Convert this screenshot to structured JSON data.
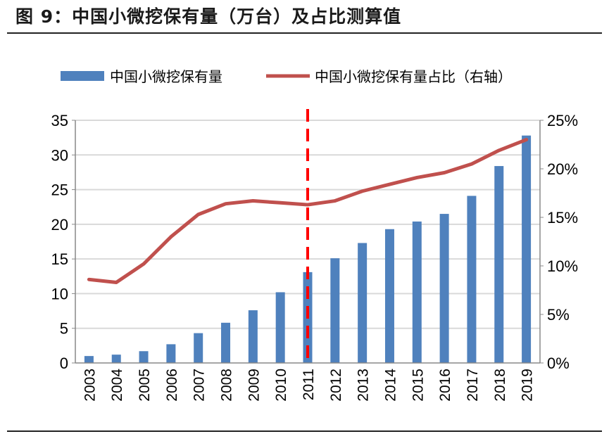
{
  "title": "图 9：中国小微挖保有量（万台）及占比测算值",
  "chart_data": {
    "type": "bar+line",
    "categories": [
      "2003",
      "2004",
      "2005",
      "2006",
      "2007",
      "2008",
      "2009",
      "2010",
      "2011",
      "2012",
      "2013",
      "2014",
      "2015",
      "2016",
      "2017",
      "2018",
      "2019"
    ],
    "series": [
      {
        "name": "中国小微挖保有量",
        "type": "bar",
        "axis": "left",
        "color": "#4F81BD",
        "values": [
          1.0,
          1.2,
          1.7,
          2.7,
          4.3,
          5.8,
          7.6,
          10.2,
          13.1,
          15.1,
          17.3,
          19.3,
          20.4,
          21.5,
          24.1,
          28.4,
          32.8
        ]
      },
      {
        "name": "中国小微挖保有量占比（右轴）",
        "type": "line",
        "axis": "right",
        "color": "#C0504D",
        "values": [
          8.6,
          8.3,
          10.2,
          13.0,
          15.3,
          16.4,
          16.7,
          16.5,
          16.3,
          16.7,
          17.7,
          18.4,
          19.1,
          19.6,
          20.5,
          21.9,
          23.0
        ]
      }
    ],
    "left_axis": {
      "ylim": [
        0,
        35
      ],
      "ticks": [
        "0",
        "5",
        "10",
        "15",
        "20",
        "25",
        "30",
        "35"
      ]
    },
    "right_axis": {
      "ylim": [
        0,
        25
      ],
      "ticks": [
        "0%",
        "5%",
        "10%",
        "15%",
        "20%",
        "25%"
      ]
    },
    "marker_line": {
      "at": "2011",
      "color": "#FF0000",
      "style": "dashed"
    },
    "grid": true,
    "legend": "top"
  }
}
